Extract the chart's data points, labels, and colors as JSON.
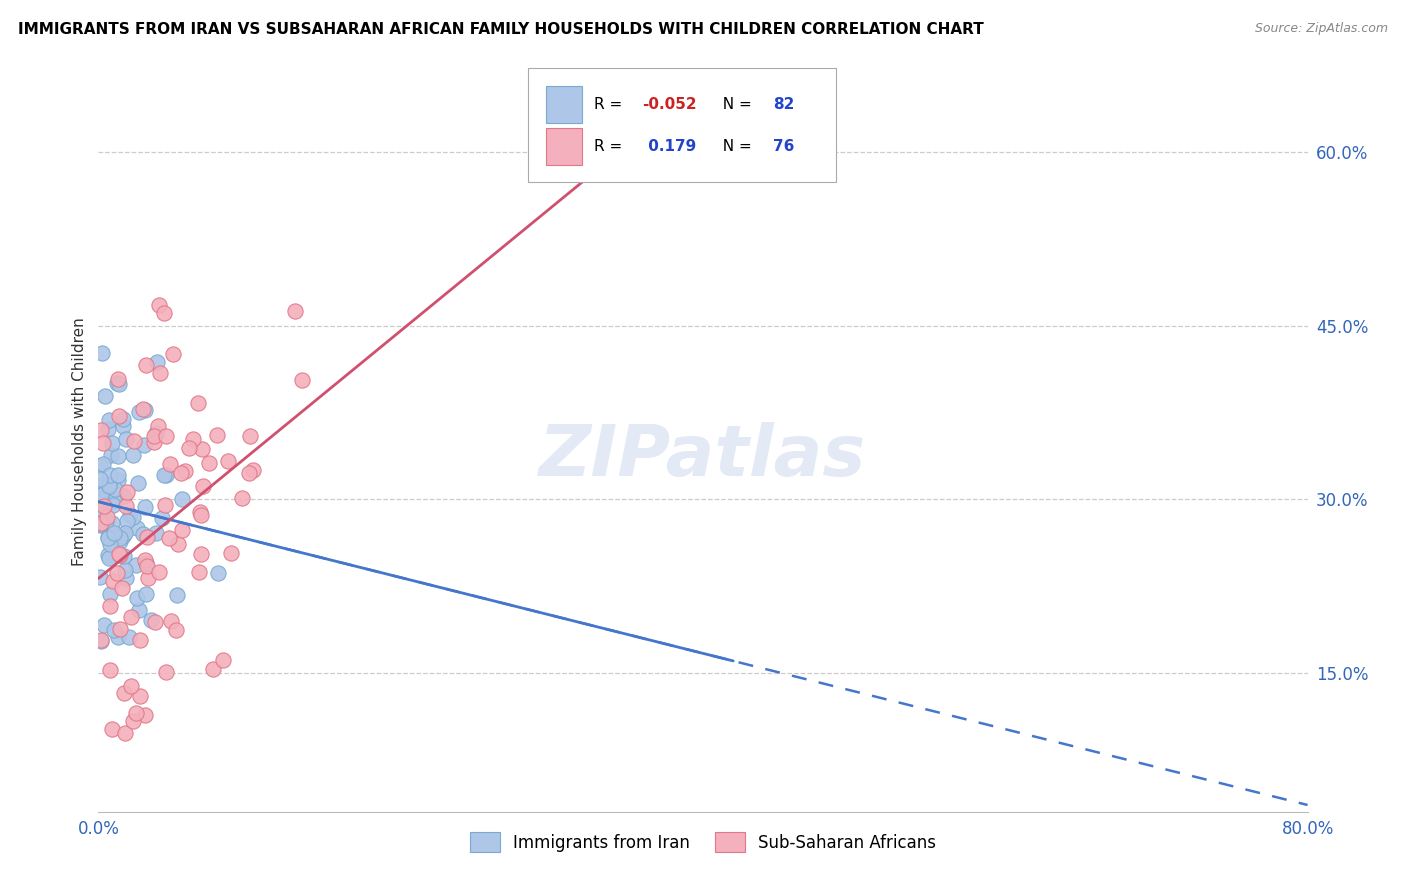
{
  "title": "IMMIGRANTS FROM IRAN VS SUBSAHARAN AFRICAN FAMILY HOUSEHOLDS WITH CHILDREN CORRELATION CHART",
  "source": "Source: ZipAtlas.com",
  "ylabel": "Family Households with Children",
  "ytick_labels": [
    "15.0%",
    "30.0%",
    "45.0%",
    "60.0%"
  ],
  "ytick_values": [
    0.15,
    0.3,
    0.45,
    0.6
  ],
  "xmin": 0.0,
  "xmax": 0.8,
  "ymin": 0.03,
  "ymax": 0.67,
  "color_iran": "#aec6e8",
  "color_iran_edge": "#7aaad0",
  "color_subsaharan": "#f4b0bc",
  "color_subsaharan_edge": "#e07888",
  "color_trendline_iran": "#4477cc",
  "color_trendline_subsaharan": "#d05070",
  "watermark": "ZIPatlas",
  "iran_seed": 10,
  "sub_seed": 20
}
